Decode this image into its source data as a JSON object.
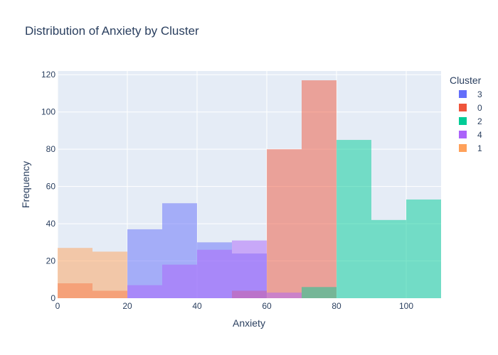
{
  "chart_data": {
    "type": "bar",
    "title": "Distribution of Anxiety by Cluster",
    "xlabel": "Anxiety",
    "ylabel": "Frequency",
    "xlim": [
      0,
      110
    ],
    "ylim": [
      0,
      122
    ],
    "xticks": [
      0,
      20,
      40,
      60,
      80,
      100
    ],
    "yticks": [
      0,
      20,
      40,
      60,
      80,
      100,
      120
    ],
    "grid": true,
    "bin_width": 10,
    "bin_starts": [
      0,
      10,
      20,
      30,
      40,
      50,
      60,
      70,
      80,
      90,
      100
    ],
    "legend": {
      "title": "Cluster",
      "placement": "right"
    },
    "series": [
      {
        "name": "3",
        "color": "#636efa",
        "values": [
          0,
          0,
          37,
          51,
          30,
          24,
          0,
          0,
          0,
          0,
          0
        ]
      },
      {
        "name": "0",
        "color": "#EF553B",
        "values": [
          8,
          4,
          0,
          0,
          0,
          4,
          80,
          117,
          0,
          0,
          0
        ]
      },
      {
        "name": "2",
        "color": "#00cc96",
        "values": [
          0,
          0,
          0,
          0,
          0,
          0,
          0,
          6,
          85,
          42,
          53
        ]
      },
      {
        "name": "4",
        "color": "#ab63fa",
        "values": [
          0,
          0,
          7,
          18,
          26,
          31,
          3,
          0,
          0,
          0,
          0
        ]
      },
      {
        "name": "1",
        "color": "#FFA15A",
        "values": [
          27,
          25,
          0,
          0,
          0,
          0,
          0,
          0,
          0,
          0,
          0
        ]
      }
    ]
  }
}
